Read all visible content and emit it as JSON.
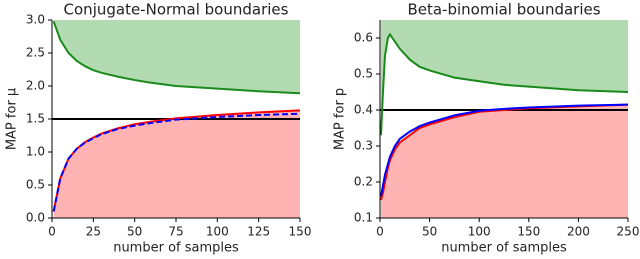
{
  "chart_data": [
    {
      "type": "line",
      "title": "Conjugate-Normal boundaries",
      "x_label": "number of samples",
      "y_label": "MAP for μ",
      "xlim": [
        0,
        150
      ],
      "ylim": [
        0,
        3
      ],
      "xticks": [
        0,
        25,
        50,
        75,
        100,
        125,
        150
      ],
      "yticks": [
        {
          "value": 0,
          "label": "0.0"
        },
        {
          "value": 0.5,
          "label": "0.5"
        },
        {
          "value": 1,
          "label": "1.0"
        },
        {
          "value": 1.5,
          "label": "1.5"
        },
        {
          "value": 2,
          "label": "2.0"
        },
        {
          "value": 2.5,
          "label": "2.5"
        },
        {
          "value": 3,
          "label": "3.0"
        }
      ],
      "hline": 1.5,
      "hline_color": "#000000",
      "x": [
        1,
        5,
        10,
        15,
        20,
        25,
        30,
        40,
        50,
        60,
        75,
        100,
        125,
        150
      ],
      "series": [
        {
          "color": "#1a8a1a",
          "fill": "above",
          "fill_color": "#b2dbb2",
          "values": [
            2.98,
            2.7,
            2.5,
            2.38,
            2.3,
            2.24,
            2.2,
            2.14,
            2.09,
            2.05,
            2.0,
            1.96,
            1.92,
            1.89
          ]
        },
        {
          "color": "#ff0000",
          "fill": "below",
          "fill_color": "#ffb3b3",
          "values": [
            0.1,
            0.6,
            0.9,
            1.05,
            1.15,
            1.22,
            1.28,
            1.36,
            1.42,
            1.46,
            1.51,
            1.56,
            1.6,
            1.63
          ]
        },
        {
          "color": "#0000ff",
          "dashed": true,
          "values": [
            0.1,
            0.6,
            0.9,
            1.05,
            1.14,
            1.21,
            1.27,
            1.35,
            1.4,
            1.44,
            1.49,
            1.53,
            1.56,
            1.58
          ]
        }
      ]
    },
    {
      "type": "line",
      "title": "Beta-binomial boundaries",
      "x_label": "number of samples",
      "y_label": "MAP for p",
      "xlim": [
        0,
        250
      ],
      "ylim": [
        0.1,
        0.65
      ],
      "xticks": [
        0,
        50,
        100,
        150,
        200,
        250
      ],
      "yticks": [
        0.1,
        0.2,
        0.3,
        0.4,
        0.5,
        0.6
      ],
      "hline": 0.4,
      "hline_color": "#000000",
      "x": [
        1,
        3,
        5,
        8,
        10,
        15,
        20,
        30,
        40,
        50,
        75,
        100,
        125,
        150,
        200,
        250
      ],
      "series": [
        {
          "color": "#1a8a1a",
          "fill": "above",
          "fill_color": "#b2dbb2",
          "values": [
            0.33,
            0.45,
            0.55,
            0.6,
            0.61,
            0.59,
            0.57,
            0.54,
            0.52,
            0.51,
            0.49,
            0.48,
            0.47,
            0.465,
            0.455,
            0.45
          ]
        },
        {
          "color": "#ff0000",
          "fill": "below",
          "fill_color": "#ffb3b3",
          "values": [
            0.15,
            0.17,
            0.2,
            0.24,
            0.26,
            0.29,
            0.31,
            0.33,
            0.35,
            0.36,
            0.38,
            0.395,
            0.4,
            0.405,
            0.41,
            0.415
          ]
        },
        {
          "color": "#0000ff",
          "values": [
            0.16,
            0.19,
            0.22,
            0.25,
            0.27,
            0.3,
            0.32,
            0.34,
            0.355,
            0.365,
            0.385,
            0.398,
            0.403,
            0.407,
            0.412,
            0.415
          ]
        }
      ]
    }
  ]
}
